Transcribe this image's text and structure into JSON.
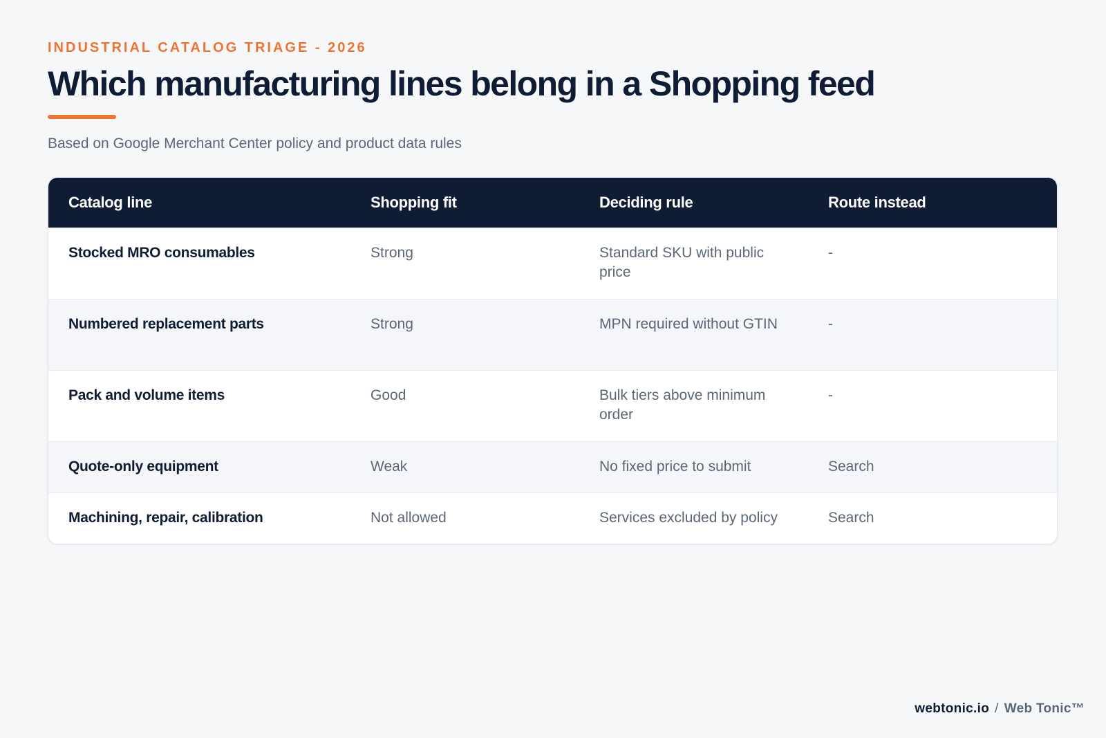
{
  "header": {
    "eyebrow": "INDUSTRIAL CATALOG TRIAGE - 2026",
    "title": "Which manufacturing lines belong in a Shopping feed",
    "subtitle": "Based on Google Merchant Center policy and product data rules"
  },
  "table": {
    "columns": [
      "Catalog line",
      "Shopping fit",
      "Deciding rule",
      "Route instead"
    ],
    "rows": [
      {
        "line": "Stocked MRO consumables",
        "fit": "Strong",
        "rule": "Standard SKU with public price",
        "route": "-"
      },
      {
        "line": "Numbered replacement parts",
        "fit": "Strong",
        "rule": "MPN required without GTIN",
        "route": "-"
      },
      {
        "line": "Pack and volume items",
        "fit": "Good",
        "rule": "Bulk tiers above minimum order",
        "route": "-"
      },
      {
        "line": "Quote-only equipment",
        "fit": "Weak",
        "rule": "No fixed price to submit",
        "route": "Search"
      },
      {
        "line": "Machining, repair, calibration",
        "fit": "Not allowed",
        "rule": "Services excluded by policy",
        "route": "Search"
      }
    ]
  },
  "footer": {
    "site": "webtonic.io",
    "separator": "/",
    "brand": "Web Tonic™"
  },
  "colors": {
    "accent": "#ee7434",
    "navy": "#0f1c33",
    "muted": "#5b6676",
    "background": "#f6f7f9"
  }
}
